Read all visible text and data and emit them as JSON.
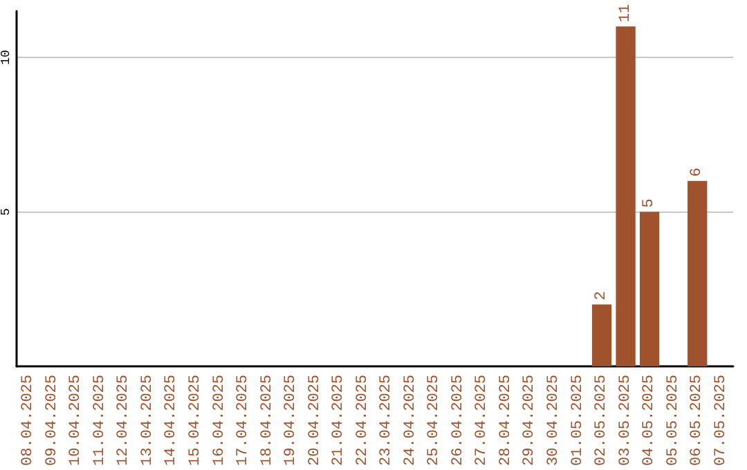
{
  "chart_data": {
    "type": "bar",
    "categories": [
      "08.04.2025",
      "09.04.2025",
      "10.04.2025",
      "11.04.2025",
      "12.04.2025",
      "13.04.2025",
      "14.04.2025",
      "15.04.2025",
      "16.04.2025",
      "17.04.2025",
      "18.04.2025",
      "19.04.2025",
      "20.04.2025",
      "21.04.2025",
      "22.04.2025",
      "23.04.2025",
      "24.04.2025",
      "25.04.2025",
      "26.04.2025",
      "27.04.2025",
      "28.04.2025",
      "29.04.2025",
      "30.04.2025",
      "01.05.2025",
      "02.05.2025",
      "03.05.2025",
      "04.05.2025",
      "05.05.2025",
      "06.05.2025",
      "07.05.2025"
    ],
    "values": [
      0,
      0,
      0,
      0,
      0,
      0,
      0,
      0,
      0,
      0,
      0,
      0,
      0,
      0,
      0,
      0,
      0,
      0,
      0,
      0,
      0,
      0,
      0,
      0,
      2,
      11,
      5,
      0,
      6,
      0
    ],
    "value_labels": [
      null,
      null,
      null,
      null,
      null,
      null,
      null,
      null,
      null,
      null,
      null,
      null,
      null,
      null,
      null,
      null,
      null,
      null,
      null,
      null,
      null,
      null,
      null,
      null,
      "2",
      "11",
      "5",
      null,
      "6",
      null
    ],
    "color": "#a0522d",
    "ylim": [
      0,
      11.5
    ],
    "yticks": [
      5,
      10
    ],
    "grid": "y"
  }
}
